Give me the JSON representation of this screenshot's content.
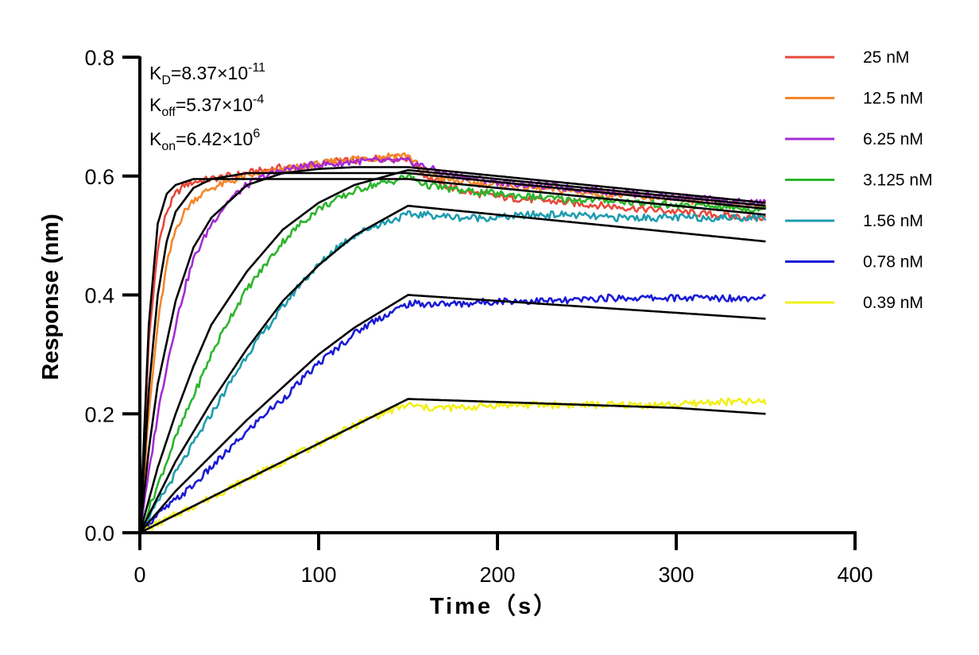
{
  "chart_data": {
    "type": "line",
    "xlabel": "Time（s）",
    "ylabel": "Response (nm)",
    "xlim": [
      0,
      400
    ],
    "ylim": [
      0,
      0.8
    ],
    "xticks": [
      "0",
      "100",
      "200",
      "300",
      "400"
    ],
    "yticks": [
      "0.0",
      "0.2",
      "0.4",
      "0.6",
      "0.8"
    ],
    "grid": false,
    "legend_position": "top-right",
    "annotations": {
      "kd_prefix": "K",
      "kd_sub": "D",
      "kd_value": "=8.37×10",
      "kd_exp": "-11",
      "koff_prefix": "K",
      "koff_sub": "off",
      "koff_value": "=5.37×10",
      "koff_exp": "-4",
      "kon_prefix": "K",
      "kon_sub": "on",
      "kon_value": "=6.42×10",
      "kon_exp": "6"
    },
    "series": [
      {
        "name": "25 nM",
        "color": "#e8483a",
        "x": [
          0,
          5,
          10,
          15,
          20,
          25,
          30,
          40,
          50,
          60,
          70,
          80,
          90,
          100,
          110,
          120,
          130,
          140,
          150,
          155,
          160,
          170,
          180,
          200,
          220,
          240,
          260,
          280,
          300,
          320,
          340,
          350
        ],
        "y": [
          0,
          0.32,
          0.48,
          0.54,
          0.57,
          0.585,
          0.59,
          0.595,
          0.6,
          0.605,
          0.61,
          0.615,
          0.615,
          0.62,
          0.625,
          0.625,
          0.63,
          0.63,
          0.63,
          0.615,
          0.6,
          0.585,
          0.575,
          0.565,
          0.56,
          0.555,
          0.55,
          0.545,
          0.54,
          0.535,
          0.53,
          0.53
        ]
      },
      {
        "name": "12.5 nM",
        "color": "#f5862a",
        "x": [
          0,
          5,
          10,
          15,
          20,
          25,
          30,
          40,
          50,
          60,
          70,
          80,
          90,
          100,
          110,
          120,
          130,
          140,
          150,
          155,
          160,
          170,
          180,
          200,
          220,
          240,
          260,
          280,
          300,
          320,
          340,
          350
        ],
        "y": [
          0,
          0.2,
          0.35,
          0.45,
          0.51,
          0.54,
          0.56,
          0.58,
          0.59,
          0.6,
          0.605,
          0.61,
          0.615,
          0.62,
          0.625,
          0.63,
          0.63,
          0.635,
          0.635,
          0.62,
          0.605,
          0.595,
          0.59,
          0.585,
          0.58,
          0.575,
          0.57,
          0.565,
          0.56,
          0.555,
          0.55,
          0.55
        ]
      },
      {
        "name": "6.25 nM",
        "color": "#a52bd6",
        "x": [
          0,
          5,
          10,
          15,
          20,
          25,
          30,
          40,
          50,
          60,
          70,
          80,
          90,
          100,
          110,
          120,
          130,
          140,
          150,
          160,
          170,
          180,
          200,
          220,
          240,
          260,
          280,
          300,
          320,
          340,
          350
        ],
        "y": [
          0,
          0.1,
          0.2,
          0.28,
          0.35,
          0.41,
          0.46,
          0.52,
          0.56,
          0.585,
          0.6,
          0.61,
          0.615,
          0.62,
          0.62,
          0.625,
          0.625,
          0.625,
          0.625,
          0.615,
          0.605,
          0.6,
          0.59,
          0.585,
          0.58,
          0.575,
          0.57,
          0.565,
          0.56,
          0.555,
          0.555
        ]
      },
      {
        "name": "3.125 nM",
        "color": "#2cb52c",
        "x": [
          0,
          10,
          20,
          30,
          40,
          50,
          60,
          70,
          80,
          90,
          100,
          110,
          120,
          130,
          140,
          150,
          160,
          180,
          200,
          220,
          240,
          260,
          280,
          300,
          320,
          340,
          350
        ],
        "y": [
          0,
          0.08,
          0.16,
          0.23,
          0.3,
          0.36,
          0.41,
          0.45,
          0.49,
          0.52,
          0.545,
          0.56,
          0.575,
          0.585,
          0.59,
          0.6,
          0.585,
          0.575,
          0.57,
          0.565,
          0.56,
          0.56,
          0.555,
          0.55,
          0.55,
          0.545,
          0.545
        ]
      },
      {
        "name": "1.56 nM",
        "color": "#1e9cb0",
        "x": [
          0,
          10,
          20,
          30,
          40,
          50,
          60,
          70,
          80,
          90,
          100,
          110,
          120,
          130,
          140,
          150,
          160,
          180,
          200,
          220,
          240,
          260,
          280,
          300,
          320,
          340,
          350
        ],
        "y": [
          0,
          0.05,
          0.1,
          0.15,
          0.2,
          0.25,
          0.3,
          0.34,
          0.38,
          0.42,
          0.45,
          0.48,
          0.5,
          0.515,
          0.525,
          0.535,
          0.535,
          0.53,
          0.53,
          0.535,
          0.535,
          0.53,
          0.53,
          0.53,
          0.53,
          0.53,
          0.53
        ]
      },
      {
        "name": "0.78 nM",
        "color": "#1a1ad6",
        "x": [
          0,
          10,
          20,
          30,
          40,
          50,
          60,
          70,
          80,
          90,
          100,
          110,
          120,
          130,
          140,
          150,
          160,
          180,
          200,
          220,
          240,
          260,
          280,
          300,
          320,
          340,
          350
        ],
        "y": [
          0,
          0.03,
          0.055,
          0.08,
          0.11,
          0.14,
          0.17,
          0.2,
          0.225,
          0.255,
          0.285,
          0.31,
          0.335,
          0.355,
          0.37,
          0.385,
          0.385,
          0.385,
          0.39,
          0.39,
          0.39,
          0.395,
          0.395,
          0.395,
          0.395,
          0.395,
          0.4
        ]
      },
      {
        "name": "0.39 nM",
        "color": "#f2ef1a",
        "x": [
          0,
          10,
          20,
          30,
          40,
          50,
          60,
          70,
          80,
          90,
          100,
          110,
          120,
          130,
          140,
          150,
          160,
          180,
          200,
          220,
          240,
          260,
          280,
          300,
          320,
          340,
          350
        ],
        "y": [
          0,
          0.015,
          0.03,
          0.045,
          0.06,
          0.075,
          0.09,
          0.105,
          0.12,
          0.135,
          0.15,
          0.165,
          0.18,
          0.195,
          0.205,
          0.215,
          0.21,
          0.21,
          0.215,
          0.215,
          0.215,
          0.215,
          0.215,
          0.215,
          0.22,
          0.22,
          0.22
        ]
      }
    ],
    "fits": [
      {
        "x": [
          0,
          5,
          10,
          15,
          20,
          30,
          40,
          60,
          80,
          100,
          120,
          150,
          200,
          250,
          300,
          350
        ],
        "y": [
          0,
          0.35,
          0.52,
          0.57,
          0.585,
          0.595,
          0.595,
          0.595,
          0.595,
          0.595,
          0.595,
          0.595,
          0.58,
          0.565,
          0.55,
          0.535
        ]
      },
      {
        "x": [
          0,
          5,
          10,
          15,
          20,
          30,
          40,
          60,
          80,
          100,
          120,
          150,
          200,
          250,
          300,
          350
        ],
        "y": [
          0,
          0.24,
          0.4,
          0.49,
          0.54,
          0.58,
          0.595,
          0.605,
          0.605,
          0.605,
          0.605,
          0.605,
          0.59,
          0.575,
          0.56,
          0.545
        ]
      },
      {
        "x": [
          0,
          5,
          10,
          20,
          30,
          40,
          60,
          80,
          100,
          120,
          150,
          200,
          250,
          300,
          350
        ],
        "y": [
          0,
          0.14,
          0.25,
          0.39,
          0.48,
          0.53,
          0.585,
          0.605,
          0.612,
          0.615,
          0.615,
          0.6,
          0.585,
          0.57,
          0.555
        ]
      },
      {
        "x": [
          0,
          10,
          20,
          30,
          40,
          60,
          80,
          100,
          120,
          150,
          200,
          250,
          300,
          350
        ],
        "y": [
          0,
          0.11,
          0.2,
          0.28,
          0.35,
          0.44,
          0.51,
          0.555,
          0.585,
          0.61,
          0.595,
          0.58,
          0.565,
          0.55
        ]
      },
      {
        "x": [
          0,
          10,
          20,
          30,
          40,
          60,
          80,
          100,
          120,
          150,
          200,
          250,
          300,
          350
        ],
        "y": [
          0,
          0.06,
          0.12,
          0.17,
          0.22,
          0.31,
          0.39,
          0.45,
          0.5,
          0.55,
          0.535,
          0.52,
          0.505,
          0.49
        ]
      },
      {
        "x": [
          0,
          10,
          20,
          30,
          40,
          60,
          80,
          100,
          120,
          150,
          200,
          250,
          300,
          350
        ],
        "y": [
          0,
          0.035,
          0.07,
          0.1,
          0.13,
          0.19,
          0.245,
          0.3,
          0.345,
          0.4,
          0.39,
          0.38,
          0.37,
          0.36
        ]
      },
      {
        "x": [
          0,
          10,
          20,
          40,
          60,
          80,
          100,
          120,
          150,
          200,
          250,
          300,
          350
        ],
        "y": [
          0,
          0.015,
          0.03,
          0.06,
          0.09,
          0.12,
          0.15,
          0.18,
          0.225,
          0.22,
          0.215,
          0.21,
          0.2
        ]
      }
    ]
  }
}
